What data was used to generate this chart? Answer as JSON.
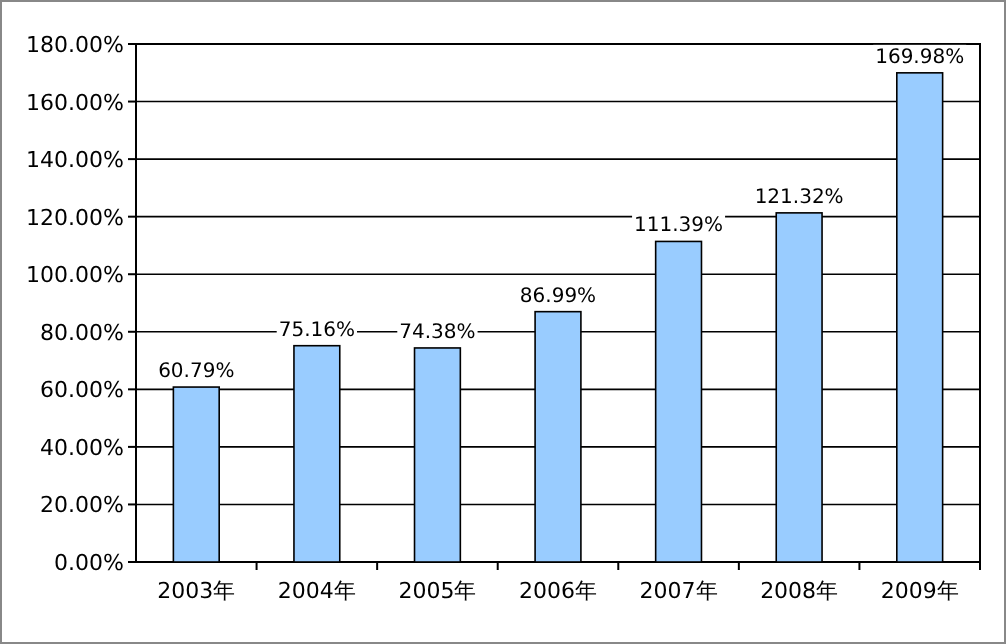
{
  "chart_data": {
    "type": "bar",
    "categories": [
      "2003年",
      "2004年",
      "2005年",
      "2006年",
      "2007年",
      "2008年",
      "2009年"
    ],
    "values": [
      60.79,
      75.16,
      74.38,
      86.99,
      111.39,
      121.32,
      169.98
    ],
    "value_labels": [
      "60.79%",
      "75.16%",
      "74.38%",
      "86.99%",
      "111.39%",
      "121.32%",
      "169.98%"
    ],
    "color": "#99ccff",
    "ylim": [
      0,
      180
    ],
    "yticks": [
      {
        "value": 0,
        "label": "0.00%"
      },
      {
        "value": 20,
        "label": "20.00%"
      },
      {
        "value": 40,
        "label": "40.00%"
      },
      {
        "value": 60,
        "label": "60.00%"
      },
      {
        "value": 80,
        "label": "80.00%"
      },
      {
        "value": 100,
        "label": "100.00%"
      },
      {
        "value": 120,
        "label": "120.00%"
      },
      {
        "value": 140,
        "label": "140.00%"
      },
      {
        "value": 160,
        "label": "160.00%"
      },
      {
        "value": 180,
        "label": "180.00%"
      }
    ],
    "grid": "y"
  }
}
